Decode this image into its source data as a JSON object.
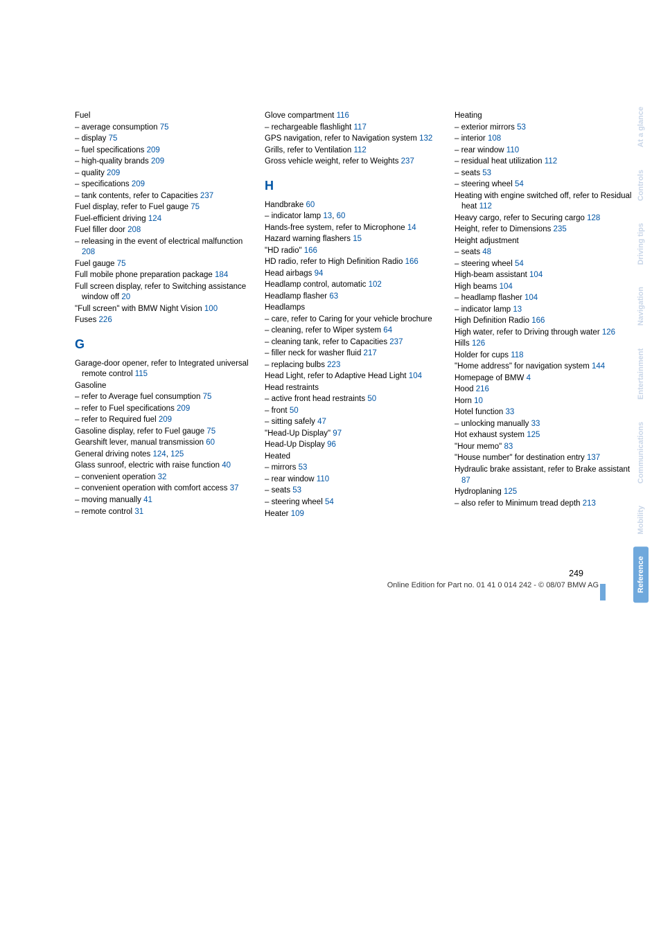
{
  "tabs": [
    "At a glance",
    "Controls",
    "Driving tips",
    "Navigation",
    "Entertainment",
    "Communications",
    "Mobility",
    "Reference"
  ],
  "footer": {
    "page": "249",
    "line": "Online Edition for Part no. 01 41 0 014 242 - © 08/07 BMW AG"
  },
  "col1": [
    [
      "Fuel"
    ],
    [
      "– average consumption",
      "75"
    ],
    [
      "– display",
      "75"
    ],
    [
      "– fuel specifications",
      "209"
    ],
    [
      "– high-quality brands",
      "209"
    ],
    [
      "– quality",
      "209"
    ],
    [
      "– specifications",
      "209"
    ],
    [
      "– tank contents, refer to Capacities",
      "237"
    ],
    [
      "Fuel display, refer to Fuel gauge",
      "75"
    ],
    [
      "Fuel-efficient driving",
      "124"
    ],
    [
      "Fuel filler door",
      "208"
    ],
    [
      "– releasing in the event of electrical malfunction",
      "208"
    ],
    [
      "Fuel gauge",
      "75"
    ],
    [
      "Full mobile phone preparation package",
      "184"
    ],
    [
      "Full screen display, refer to Switching assistance window off",
      "20"
    ],
    [
      "\"Full screen\" with BMW Night Vision",
      "100"
    ],
    [
      "Fuses",
      "226"
    ]
  ],
  "col1_head": "G",
  "col1b": [
    [
      "Garage-door opener, refer to Integrated universal remote control",
      "115"
    ],
    [
      "Gasoline"
    ],
    [
      "– refer to Average fuel consumption",
      "75"
    ],
    [
      "– refer to Fuel specifications",
      "209"
    ],
    [
      "– refer to Required fuel",
      "209"
    ],
    [
      "Gasoline display, refer to Fuel gauge",
      "75"
    ],
    [
      "Gearshift lever, manual transmission",
      "60"
    ],
    [
      "General driving notes",
      "124",
      ", ",
      "125"
    ],
    [
      "Glass sunroof, electric with raise function",
      "40"
    ],
    [
      "– convenient operation",
      "32"
    ],
    [
      "– convenient operation with comfort access",
      "37"
    ],
    [
      "– moving manually",
      "41"
    ],
    [
      "– remote control",
      "31"
    ]
  ],
  "col2a": [
    [
      "Glove compartment",
      "116"
    ],
    [
      "– rechargeable flashlight",
      "117"
    ],
    [
      "GPS navigation, refer to Navigation system",
      "132"
    ],
    [
      "Grills, refer to Ventilation",
      "112"
    ],
    [
      "Gross vehicle weight, refer to Weights",
      "237"
    ]
  ],
  "col2_head": "H",
  "col2b": [
    [
      "Handbrake",
      "60"
    ],
    [
      "– indicator lamp",
      "13",
      ", ",
      "60"
    ],
    [
      "Hands-free system, refer to Microphone",
      "14"
    ],
    [
      "Hazard warning flashers",
      "15"
    ],
    [
      "\"HD radio\"",
      "166"
    ],
    [
      "HD radio, refer to High Definition Radio",
      "166"
    ],
    [
      "Head airbags",
      "94"
    ],
    [
      "Headlamp control, automatic",
      "102"
    ],
    [
      "Headlamp flasher",
      "63"
    ],
    [
      "Headlamps"
    ],
    [
      "– care, refer to Caring for your vehicle brochure"
    ],
    [
      "– cleaning, refer to Wiper system",
      "64"
    ],
    [
      "– cleaning tank, refer to Capacities",
      "237"
    ],
    [
      "– filler neck for washer fluid",
      "217"
    ],
    [
      "– replacing bulbs",
      "223"
    ],
    [
      "Head Light, refer to Adaptive Head Light",
      "104"
    ],
    [
      "Head restraints"
    ],
    [
      "– active front head restraints",
      "50"
    ],
    [
      "– front",
      "50"
    ],
    [
      "– sitting safely",
      "47"
    ],
    [
      "\"Head-Up Display\"",
      "97"
    ],
    [
      "Head-Up Display",
      "96"
    ],
    [
      "Heated"
    ],
    [
      "– mirrors",
      "53"
    ],
    [
      "– rear window",
      "110"
    ],
    [
      "– seats",
      "53"
    ],
    [
      "– steering wheel",
      "54"
    ],
    [
      "Heater",
      "109"
    ]
  ],
  "col3": [
    [
      "Heating"
    ],
    [
      "– exterior mirrors",
      "53"
    ],
    [
      "– interior",
      "108"
    ],
    [
      "– rear window",
      "110"
    ],
    [
      "– residual heat utilization",
      "112"
    ],
    [
      "– seats",
      "53"
    ],
    [
      "– steering wheel",
      "54"
    ],
    [
      "Heating with engine switched off, refer to Residual heat",
      "112"
    ],
    [
      "Heavy cargo, refer to Securing cargo",
      "128"
    ],
    [
      "Height, refer to Dimensions",
      "235"
    ],
    [
      "Height adjustment"
    ],
    [
      "– seats",
      "48"
    ],
    [
      "– steering wheel",
      "54"
    ],
    [
      "High-beam assistant",
      "104"
    ],
    [
      "High beams",
      "104"
    ],
    [
      "– headlamp flasher",
      "104"
    ],
    [
      "– indicator lamp",
      "13"
    ],
    [
      "High Definition Radio",
      "166"
    ],
    [
      "High water, refer to Driving through water",
      "126"
    ],
    [
      "Hills",
      "126"
    ],
    [
      "Holder for cups",
      "118"
    ],
    [
      "\"Home address\" for navigation system",
      "144"
    ],
    [
      "Homepage of BMW",
      "4"
    ],
    [
      "Hood",
      "216"
    ],
    [
      "Horn",
      "10"
    ],
    [
      "Hotel function",
      "33"
    ],
    [
      "– unlocking manually",
      "33"
    ],
    [
      "Hot exhaust system",
      "125"
    ],
    [
      "\"Hour memo\"",
      "83"
    ],
    [
      "\"House number\" for destination entry",
      "137"
    ],
    [
      "Hydraulic brake assistant, refer to Brake assistant",
      "87"
    ],
    [
      "Hydroplaning",
      "125"
    ],
    [
      "– also refer to Minimum tread depth",
      "213"
    ]
  ]
}
